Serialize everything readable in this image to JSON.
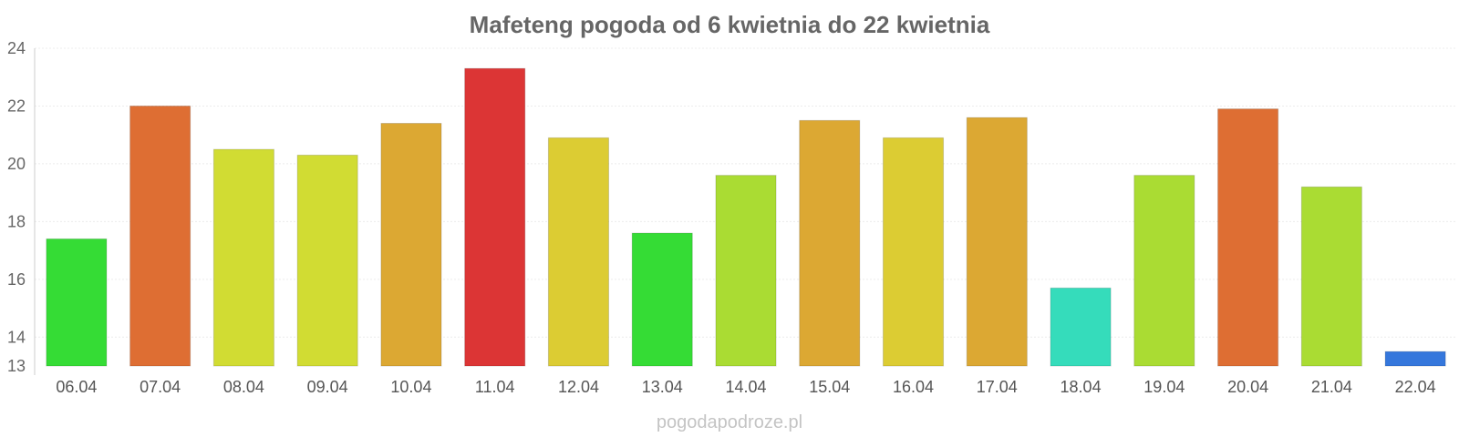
{
  "chart_data": {
    "type": "bar",
    "title": "Mafeteng pogoda od 6 kwietnia do 22 kwietnia",
    "xlabel": "",
    "ylabel": "",
    "ylim": [
      13,
      24
    ],
    "yticks": [
      13,
      14,
      16,
      18,
      20,
      22,
      24
    ],
    "grid": true,
    "categories": [
      "06.04",
      "07.04",
      "08.04",
      "09.04",
      "10.04",
      "11.04",
      "12.04",
      "13.04",
      "14.04",
      "15.04",
      "16.04",
      "17.04",
      "18.04",
      "19.04",
      "20.04",
      "21.04",
      "22.04"
    ],
    "values": [
      17.4,
      22.0,
      20.5,
      20.3,
      21.4,
      23.3,
      20.9,
      17.6,
      19.6,
      21.5,
      20.9,
      21.6,
      15.7,
      19.6,
      21.9,
      19.2,
      13.5
    ],
    "colors": [
      "#35dc35",
      "#de6e33",
      "#d1dc33",
      "#d1dc33",
      "#dca833",
      "#dc3535",
      "#dccc33",
      "#35dc35",
      "#aadc33",
      "#dca833",
      "#dccc33",
      "#dca833",
      "#35dcbb",
      "#aadc33",
      "#de6e33",
      "#aadc33",
      "#3577dc"
    ]
  },
  "footer": {
    "watermark": "pogodapodroze.pl"
  }
}
